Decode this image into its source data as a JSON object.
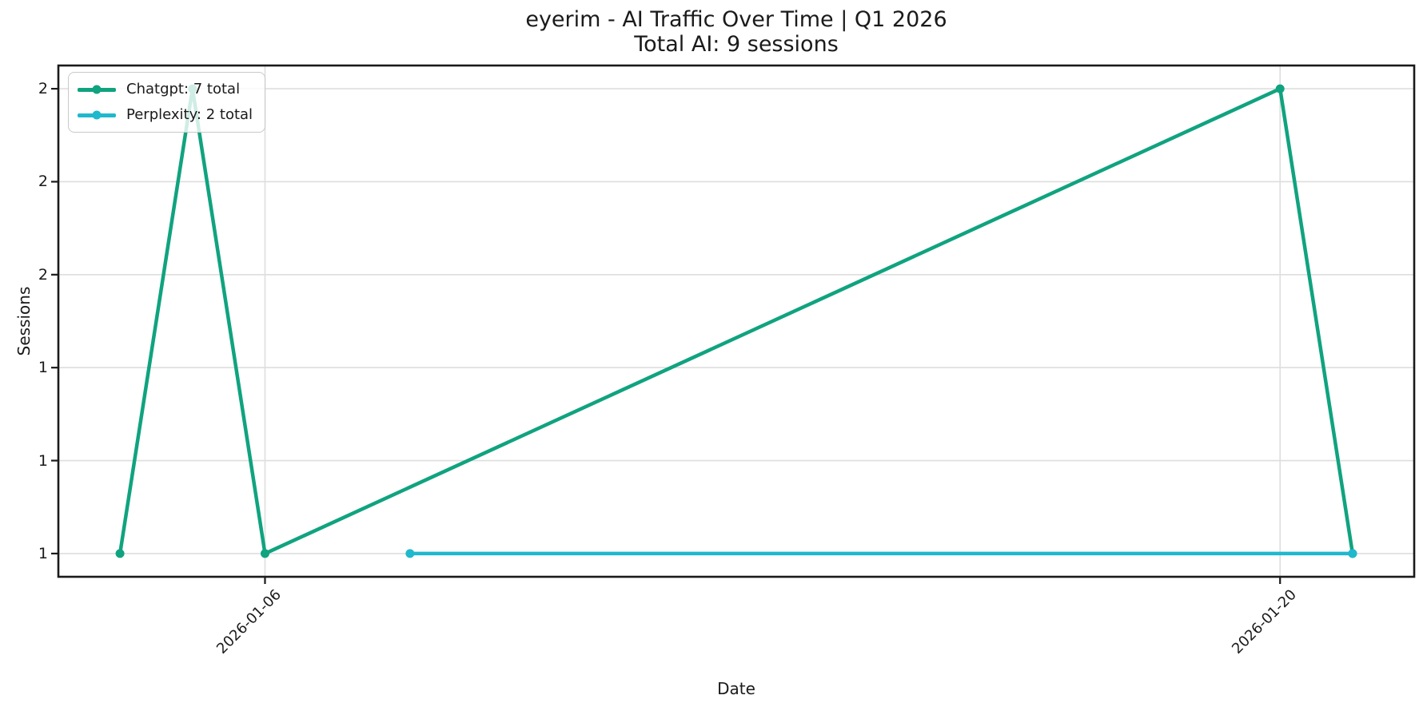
{
  "chart_data": {
    "type": "line",
    "title": "eyerim - AI Traffic Over Time | Q1 2026",
    "subtitle": "Total AI: 9 sessions",
    "total_ai_sessions": 9,
    "xlabel": "Date",
    "ylabel": "Sessions",
    "grid": true,
    "legend_position": "upper-left",
    "background": "#ffffff",
    "spine_color": "#1a1a1a",
    "grid_color": "#dedede",
    "x_range_dates": [
      "2026-01-04",
      "2026-01-21"
    ],
    "x_margin_days": 0.85,
    "ylim": [
      0.95,
      2.05
    ],
    "x_tick_rotation_deg": 45,
    "x_ticks": [
      {
        "date": "2026-01-06",
        "label": "2026-01-06"
      },
      {
        "date": "2026-01-20",
        "label": "2026-01-20"
      }
    ],
    "y_ticks": [
      {
        "value": 1.0,
        "label": "1"
      },
      {
        "value": 1.2,
        "label": "1"
      },
      {
        "value": 1.4,
        "label": "1"
      },
      {
        "value": 1.6,
        "label": "2"
      },
      {
        "value": 1.8,
        "label": "2"
      },
      {
        "value": 2.0,
        "label": "2"
      }
    ],
    "series": [
      {
        "name": "Chatgpt",
        "legend_label": "Chatgpt: 7 total",
        "total": 7,
        "color": "#10a37f",
        "points": [
          {
            "date": "2026-01-04",
            "value": 1
          },
          {
            "date": "2026-01-05",
            "value": 2
          },
          {
            "date": "2026-01-06",
            "value": 1
          },
          {
            "date": "2026-01-20",
            "value": 2
          },
          {
            "date": "2026-01-21",
            "value": 1
          }
        ]
      },
      {
        "name": "Perplexity",
        "legend_label": "Perplexity: 2 total",
        "total": 2,
        "color": "#20b8cd",
        "points": [
          {
            "date": "2026-01-08",
            "value": 1
          },
          {
            "date": "2026-01-21",
            "value": 1
          }
        ]
      }
    ]
  }
}
